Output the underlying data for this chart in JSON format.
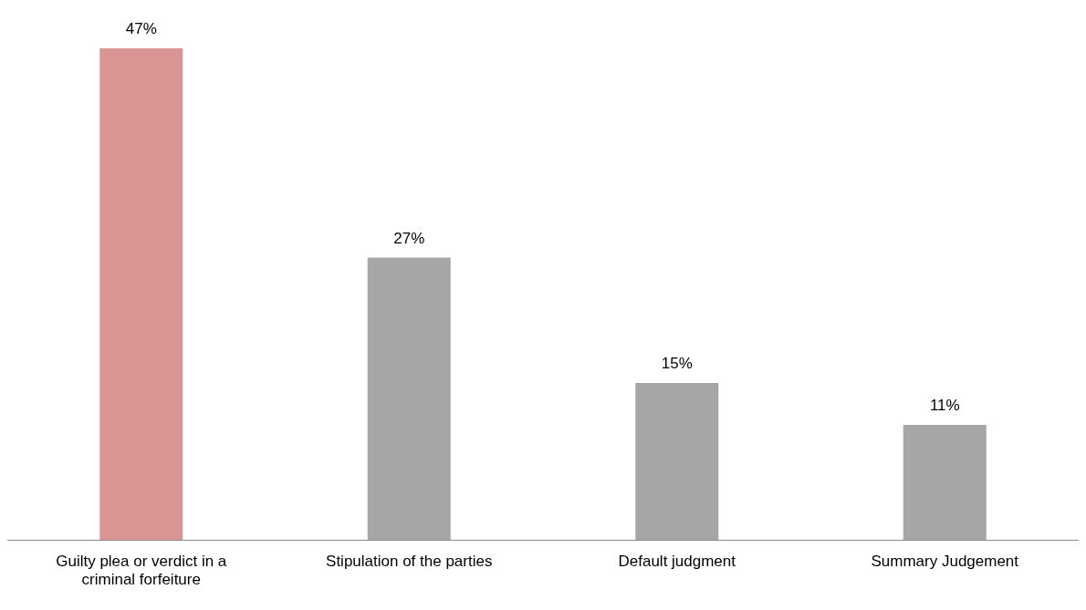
{
  "chart_data": {
    "type": "bar",
    "categories": [
      "Guilty plea or verdict in a criminal forfeiture",
      "Stipulation of the parties",
      "Default judgment",
      "Summary Judgement"
    ],
    "values": [
      47,
      27,
      15,
      11
    ],
    "colors": [
      "#d99594",
      "#a6a6a6",
      "#a6a6a6",
      "#a6a6a6"
    ],
    "value_labels": [
      "47%",
      "27%",
      "15%",
      "11%"
    ],
    "grid": false,
    "legend": false
  }
}
